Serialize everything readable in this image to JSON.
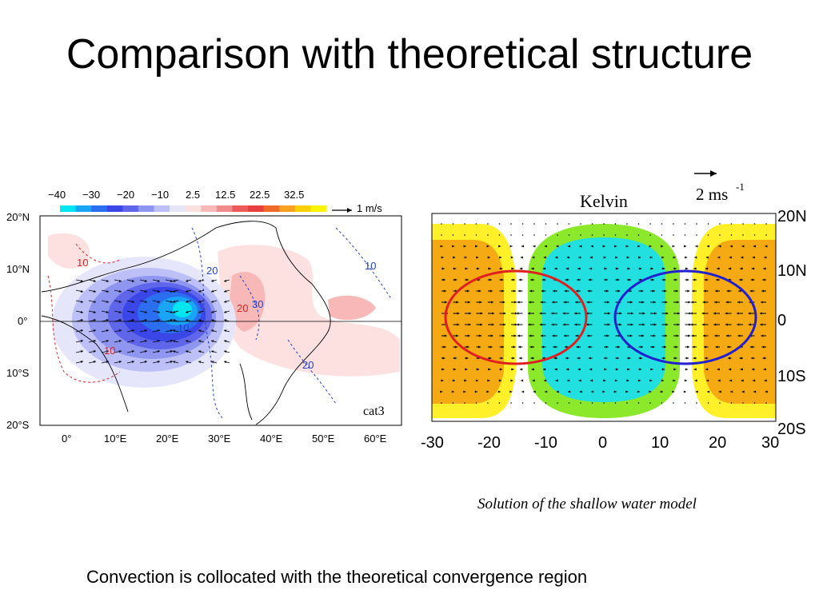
{
  "title": "Comparison with theoretical structure",
  "left_panel": {
    "colorbar_labels": [
      "−40",
      "−30",
      "−20",
      "−10",
      "2.5",
      "12.5",
      "22.5",
      "32.5"
    ],
    "colorbar_colors": [
      "#00e6f0",
      "#1aa4f5",
      "#2b6ef0",
      "#3a46e6",
      "#5f66ea",
      "#8f96f0",
      "#bcc0f6",
      "#e6e6fb",
      "#fde0e0",
      "#f8b8b8",
      "#f08c8c",
      "#ec5a5a",
      "#e84040",
      "#f06a2a",
      "#f8a020",
      "#fcd000",
      "#fff400"
    ],
    "vector_label": "1 m/s",
    "y_ticks": [
      "20°N",
      "10°N",
      "0°",
      "10°S",
      "20°S"
    ],
    "x_ticks": [
      "0°",
      "10°E",
      "20°E",
      "30°E",
      "40°E",
      "50°E",
      "60°E"
    ],
    "contour_labels": [
      "10",
      "10",
      "20",
      "10",
      "20",
      "30",
      "10",
      "20"
    ],
    "panel_label": "cat3"
  },
  "right_panel": {
    "model_name": "Kelvin",
    "vector_label": "2 ms",
    "vector_label_sup": "-1",
    "y_ticks": [
      "20N",
      "10N",
      "0",
      "10S",
      "20S"
    ],
    "x_ticks": [
      "-30",
      "-20",
      "-10",
      "0",
      "10",
      "20",
      "30"
    ],
    "colors": {
      "orange": "#f5a912",
      "yellow": "#fff02a",
      "green": "#8ce82a",
      "cyan": "#22e0e0",
      "red_ellipse": "#e02020",
      "blue_ellipse": "#2020d0"
    },
    "caption": "Solution of the shallow water model"
  },
  "conclusion": "Convection is collocated with the theoretical convergence region"
}
